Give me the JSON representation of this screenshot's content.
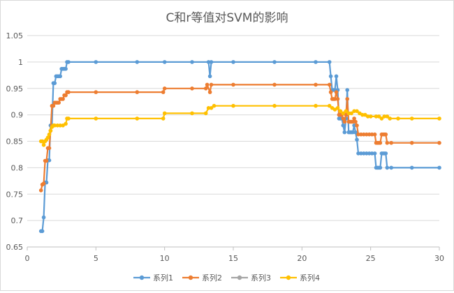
{
  "chart_data": {
    "type": "line",
    "title": "C和r等值对SVM的影响",
    "xlabel": "",
    "ylabel": "",
    "xlim": [
      0,
      30
    ],
    "ylim": [
      0.65,
      1.05
    ],
    "xticks": [
      0,
      5,
      10,
      15,
      20,
      25,
      30
    ],
    "yticks": [
      0.65,
      0.7,
      0.75,
      0.8,
      0.85,
      0.9,
      0.95,
      1,
      1.05
    ],
    "ytick_labels": [
      "0.65",
      "0.7",
      "0.75",
      "0.8",
      "0.85",
      "0.9",
      "0.95",
      "1",
      "1.05"
    ],
    "grid": "horizontal",
    "legend_position": "bottom",
    "series": [
      {
        "name": "系列1",
        "color": "#5b9bd5",
        "points": [
          [
            1.0,
            0.68
          ],
          [
            1.1,
            0.68
          ],
          [
            1.2,
            0.706
          ],
          [
            1.3,
            0.772
          ],
          [
            1.4,
            0.772
          ],
          [
            1.5,
            0.814
          ],
          [
            1.6,
            0.814
          ],
          [
            1.7,
            0.88
          ],
          [
            1.8,
            0.88
          ],
          [
            1.9,
            0.96
          ],
          [
            2.0,
            0.96
          ],
          [
            2.1,
            0.973
          ],
          [
            2.2,
            0.973
          ],
          [
            2.3,
            0.973
          ],
          [
            2.4,
            0.973
          ],
          [
            2.5,
            0.987
          ],
          [
            2.6,
            0.987
          ],
          [
            2.7,
            0.987
          ],
          [
            2.8,
            0.987
          ],
          [
            2.9,
            1.0
          ],
          [
            3.0,
            1.0
          ],
          [
            5,
            1.0
          ],
          [
            8,
            1.0
          ],
          [
            10,
            1.0
          ],
          [
            12,
            1.0
          ],
          [
            13.2,
            1.0
          ],
          [
            13.3,
            0.973
          ],
          [
            13.4,
            1.0
          ],
          [
            15,
            1.0
          ],
          [
            18,
            1.0
          ],
          [
            21,
            1.0
          ],
          [
            22.0,
            1.0
          ],
          [
            22.1,
            0.973
          ],
          [
            22.2,
            0.947
          ],
          [
            22.3,
            0.947
          ],
          [
            22.4,
            0.947
          ],
          [
            22.5,
            0.973
          ],
          [
            22.6,
            0.947
          ],
          [
            22.7,
            0.893
          ],
          [
            22.8,
            0.893
          ],
          [
            22.9,
            0.893
          ],
          [
            23.0,
            0.88
          ],
          [
            23.1,
            0.867
          ],
          [
            23.2,
            0.893
          ],
          [
            23.3,
            0.947
          ],
          [
            23.4,
            0.867
          ],
          [
            23.5,
            0.867
          ],
          [
            23.6,
            0.867
          ],
          [
            23.7,
            0.867
          ],
          [
            23.8,
            0.88
          ],
          [
            23.9,
            0.867
          ],
          [
            24.0,
            0.853
          ],
          [
            24.1,
            0.827
          ],
          [
            24.3,
            0.827
          ],
          [
            24.5,
            0.827
          ],
          [
            24.7,
            0.827
          ],
          [
            24.9,
            0.827
          ],
          [
            25.1,
            0.827
          ],
          [
            25.3,
            0.827
          ],
          [
            25.4,
            0.8
          ],
          [
            25.5,
            0.8
          ],
          [
            25.6,
            0.8
          ],
          [
            25.7,
            0.8
          ],
          [
            25.8,
            0.827
          ],
          [
            25.9,
            0.827
          ],
          [
            26.0,
            0.827
          ],
          [
            26.1,
            0.827
          ],
          [
            26.2,
            0.8
          ],
          [
            26.5,
            0.8
          ],
          [
            28,
            0.8
          ],
          [
            30,
            0.8
          ]
        ]
      },
      {
        "name": "系列2",
        "color": "#ed7d31",
        "points": [
          [
            1.0,
            0.757
          ],
          [
            1.1,
            0.768
          ],
          [
            1.2,
            0.77
          ],
          [
            1.3,
            0.813
          ],
          [
            1.4,
            0.813
          ],
          [
            1.5,
            0.837
          ],
          [
            1.6,
            0.837
          ],
          [
            1.7,
            0.87
          ],
          [
            1.8,
            0.917
          ],
          [
            1.9,
            0.917
          ],
          [
            2.0,
            0.923
          ],
          [
            2.1,
            0.923
          ],
          [
            2.2,
            0.923
          ],
          [
            2.3,
            0.923
          ],
          [
            2.4,
            0.93
          ],
          [
            2.5,
            0.93
          ],
          [
            2.6,
            0.93
          ],
          [
            2.7,
            0.937
          ],
          [
            2.8,
            0.937
          ],
          [
            2.9,
            0.943
          ],
          [
            3.0,
            0.943
          ],
          [
            5,
            0.943
          ],
          [
            8,
            0.943
          ],
          [
            9.9,
            0.943
          ],
          [
            10.0,
            0.95
          ],
          [
            12,
            0.95
          ],
          [
            13.0,
            0.95
          ],
          [
            13.1,
            0.957
          ],
          [
            13.3,
            0.943
          ],
          [
            13.4,
            0.957
          ],
          [
            15,
            0.957
          ],
          [
            18,
            0.957
          ],
          [
            21,
            0.957
          ],
          [
            22.0,
            0.957
          ],
          [
            22.1,
            0.943
          ],
          [
            22.2,
            0.93
          ],
          [
            22.3,
            0.93
          ],
          [
            22.4,
            0.93
          ],
          [
            22.5,
            0.943
          ],
          [
            22.6,
            0.93
          ],
          [
            22.7,
            0.9
          ],
          [
            22.8,
            0.9
          ],
          [
            22.9,
            0.9
          ],
          [
            23.0,
            0.893
          ],
          [
            23.1,
            0.887
          ],
          [
            23.2,
            0.9
          ],
          [
            23.3,
            0.93
          ],
          [
            23.4,
            0.887
          ],
          [
            23.5,
            0.887
          ],
          [
            23.6,
            0.887
          ],
          [
            23.7,
            0.887
          ],
          [
            23.8,
            0.893
          ],
          [
            23.9,
            0.887
          ],
          [
            24.0,
            0.88
          ],
          [
            24.1,
            0.863
          ],
          [
            24.3,
            0.863
          ],
          [
            24.5,
            0.863
          ],
          [
            24.7,
            0.863
          ],
          [
            24.9,
            0.863
          ],
          [
            25.1,
            0.863
          ],
          [
            25.3,
            0.863
          ],
          [
            25.4,
            0.847
          ],
          [
            25.5,
            0.847
          ],
          [
            25.6,
            0.847
          ],
          [
            25.7,
            0.847
          ],
          [
            25.8,
            0.863
          ],
          [
            25.9,
            0.863
          ],
          [
            26.0,
            0.863
          ],
          [
            26.1,
            0.863
          ],
          [
            26.2,
            0.847
          ],
          [
            26.5,
            0.847
          ],
          [
            28,
            0.847
          ],
          [
            30,
            0.847
          ]
        ]
      },
      {
        "name": "系列3",
        "color": "#a5a5a5",
        "points": []
      },
      {
        "name": "系列4",
        "color": "#ffc000",
        "points": [
          [
            1.0,
            0.85
          ],
          [
            1.1,
            0.85
          ],
          [
            1.2,
            0.843
          ],
          [
            1.3,
            0.85
          ],
          [
            1.4,
            0.853
          ],
          [
            1.5,
            0.857
          ],
          [
            1.6,
            0.863
          ],
          [
            1.7,
            0.87
          ],
          [
            1.8,
            0.877
          ],
          [
            1.9,
            0.88
          ],
          [
            2.0,
            0.88
          ],
          [
            2.2,
            0.88
          ],
          [
            2.4,
            0.88
          ],
          [
            2.6,
            0.88
          ],
          [
            2.8,
            0.883
          ],
          [
            2.9,
            0.893
          ],
          [
            3.0,
            0.893
          ],
          [
            5,
            0.893
          ],
          [
            8,
            0.893
          ],
          [
            9.9,
            0.893
          ],
          [
            10.0,
            0.903
          ],
          [
            12,
            0.903
          ],
          [
            13.0,
            0.903
          ],
          [
            13.2,
            0.913
          ],
          [
            13.4,
            0.913
          ],
          [
            13.6,
            0.917
          ],
          [
            15,
            0.917
          ],
          [
            18,
            0.917
          ],
          [
            21,
            0.917
          ],
          [
            22.0,
            0.917
          ],
          [
            22.2,
            0.913
          ],
          [
            22.4,
            0.91
          ],
          [
            22.6,
            0.913
          ],
          [
            22.8,
            0.907
          ],
          [
            23.0,
            0.903
          ],
          [
            23.2,
            0.907
          ],
          [
            23.4,
            0.903
          ],
          [
            23.6,
            0.903
          ],
          [
            23.8,
            0.907
          ],
          [
            24.0,
            0.907
          ],
          [
            24.2,
            0.903
          ],
          [
            24.4,
            0.9
          ],
          [
            24.6,
            0.9
          ],
          [
            24.8,
            0.897
          ],
          [
            25.0,
            0.897
          ],
          [
            25.4,
            0.897
          ],
          [
            25.6,
            0.897
          ],
          [
            25.8,
            0.893
          ],
          [
            26.0,
            0.897
          ],
          [
            26.2,
            0.897
          ],
          [
            26.4,
            0.893
          ],
          [
            27,
            0.893
          ],
          [
            28,
            0.893
          ],
          [
            30,
            0.893
          ]
        ]
      }
    ]
  }
}
